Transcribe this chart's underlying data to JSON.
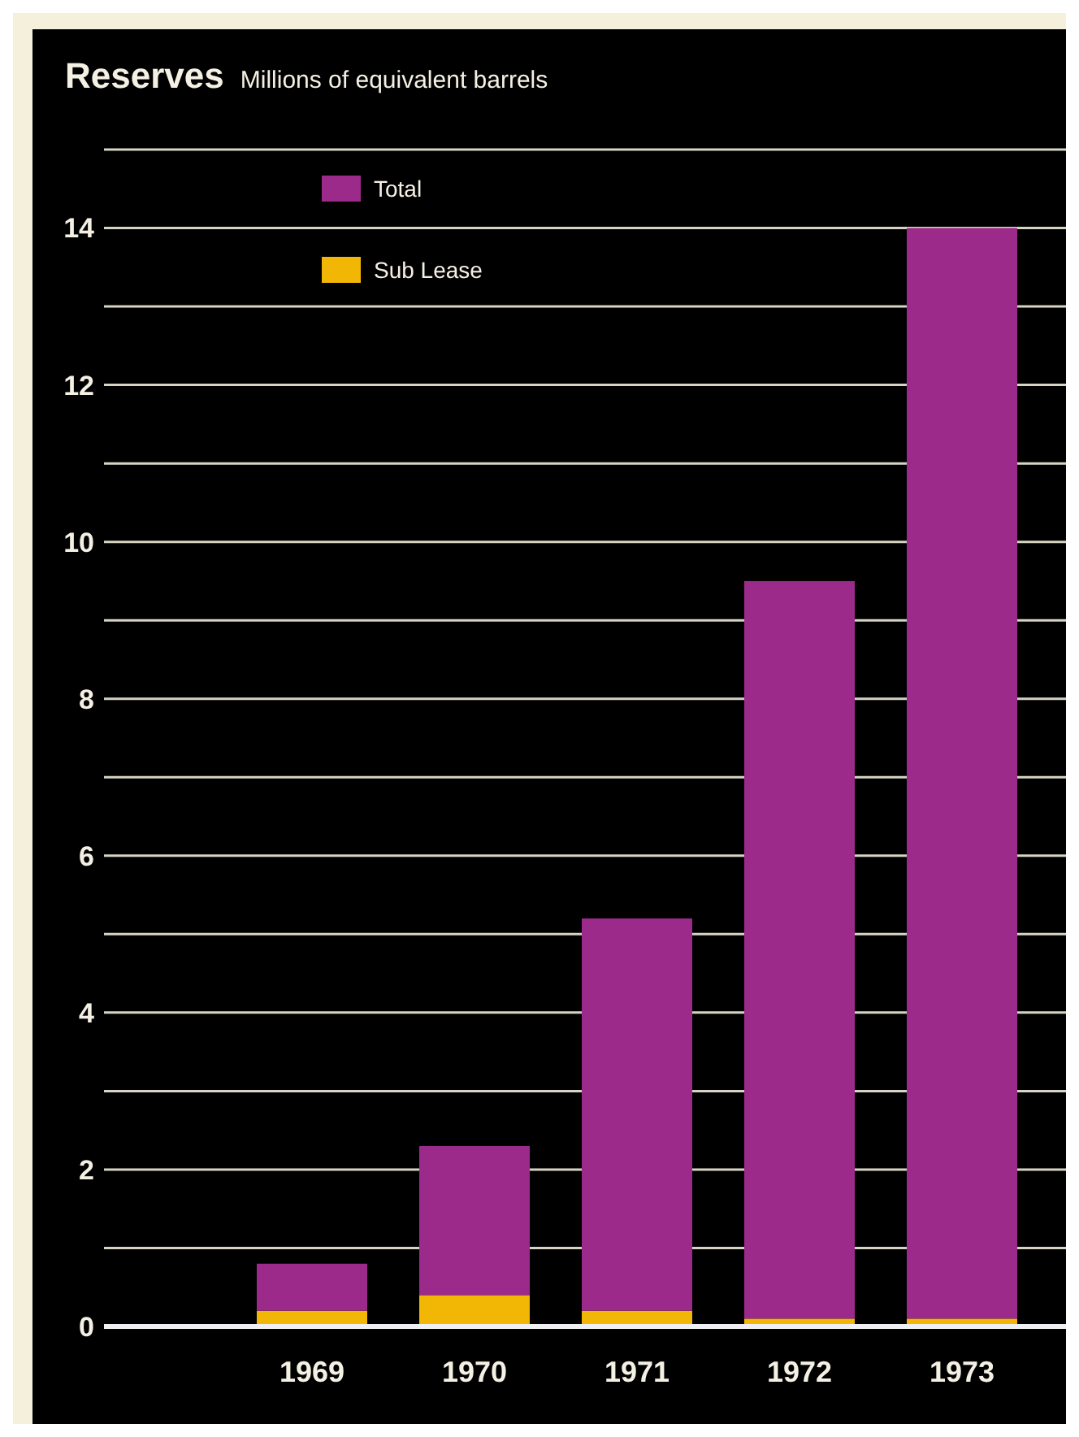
{
  "chart_data": {
    "type": "bar",
    "title": "Reserves",
    "subtitle": "Millions of equivalent barrels",
    "categories": [
      "1969",
      "1970",
      "1971",
      "1972",
      "1973"
    ],
    "stacked": true,
    "series": [
      {
        "name": "Sub Lease",
        "color": "#f2b705",
        "values": [
          0.2,
          0.4,
          0.2,
          0.1,
          0.1
        ]
      },
      {
        "name": "Total",
        "color": "#9c2a8a",
        "values": [
          0.6,
          1.9,
          5.0,
          9.4,
          13.9
        ]
      }
    ],
    "ylim": [
      0,
      15
    ],
    "yticks": [
      0,
      {
        "value": 1,
        "label": null
      },
      2,
      {
        "value": 3,
        "label": null
      },
      4,
      {
        "value": 5,
        "label": null
      },
      6,
      {
        "value": 7,
        "label": null
      },
      8,
      {
        "value": 9,
        "label": null
      },
      10,
      {
        "value": 11,
        "label": null
      },
      12,
      {
        "value": 13,
        "label": null
      },
      14,
      {
        "value": 15,
        "label": null
      }
    ],
    "grid": "y",
    "legend": "top left"
  }
}
